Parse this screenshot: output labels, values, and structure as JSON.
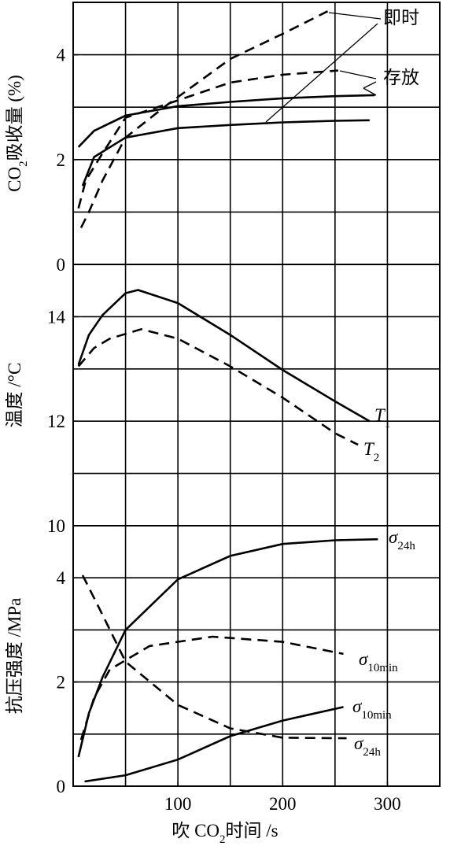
{
  "chart_data": [
    {
      "type": "line",
      "xlim": [
        0,
        350
      ],
      "xgrid": [
        50,
        100,
        150,
        200,
        250,
        300
      ],
      "ylim": [
        0,
        5
      ],
      "yticks": [
        0,
        2,
        4
      ],
      "ygrid": [
        1,
        2,
        3,
        4
      ],
      "ylabel": [
        {
          "text": "CO"
        },
        {
          "text": "2",
          "sub": true
        },
        {
          "text": "吸收量 (%)"
        }
      ],
      "series": [
        {
          "style": "solid",
          "color": "#000",
          "x": [
            5,
            20,
            50,
            100,
            150,
            200,
            250,
            288
          ],
          "values": [
            2.24,
            2.55,
            2.84,
            3.02,
            3.1,
            3.17,
            3.21,
            3.23
          ]
        },
        {
          "style": "solid",
          "color": "#000",
          "x": [
            9,
            20,
            50,
            100,
            150,
            200,
            250,
            283
          ],
          "values": [
            1.5,
            2.05,
            2.42,
            2.6,
            2.66,
            2.71,
            2.74,
            2.75
          ]
        },
        {
          "style": "dashed",
          "color": "#000",
          "x": [
            7.5,
            15,
            28,
            50,
            88,
            150,
            200,
            243
          ],
          "values": [
            0.7,
            1.0,
            1.6,
            2.42,
            3.02,
            3.92,
            4.4,
            4.83
          ]
        },
        {
          "style": "dashed",
          "color": "#000",
          "x": [
            5,
            12,
            28,
            50,
            88,
            150,
            200,
            253
          ],
          "values": [
            1.07,
            1.6,
            2.12,
            2.8,
            3.05,
            3.47,
            3.62,
            3.7
          ]
        }
      ],
      "annotations": [
        [
          {
            "text": "即时"
          }
        ],
        [
          {
            "text": "存放"
          }
        ]
      ]
    },
    {
      "type": "line",
      "xlim": [
        0,
        350
      ],
      "xgrid": [
        50,
        100,
        150,
        200,
        250,
        300
      ],
      "ylim": [
        10,
        15
      ],
      "yticks": [
        10,
        12,
        14
      ],
      "ygrid": [
        11,
        12,
        13,
        14
      ],
      "ylabel": [
        {
          "text": "温度 /°C"
        }
      ],
      "series": [
        {
          "style": "solid",
          "color": "#000",
          "x": [
            5,
            15,
            28,
            50,
            62,
            100,
            150,
            200,
            250,
            283
          ],
          "values": [
            13.08,
            13.65,
            14.03,
            14.45,
            14.51,
            14.26,
            13.65,
            12.98,
            12.38,
            12.0
          ]
        },
        {
          "style": "dashed",
          "color": "#000",
          "x": [
            5,
            20,
            35,
            65,
            100,
            150,
            200,
            250,
            272
          ],
          "values": [
            13.05,
            13.4,
            13.58,
            13.76,
            13.58,
            13.05,
            12.45,
            11.77,
            11.55
          ]
        }
      ],
      "annotations": [
        [
          {
            "text": "T",
            "italic": true
          },
          {
            "text": "1",
            "sub": true
          }
        ],
        [
          {
            "text": "T",
            "italic": true
          },
          {
            "text": "2",
            "sub": true
          }
        ]
      ]
    },
    {
      "type": "line",
      "xlim": [
        0,
        350
      ],
      "xgrid": [
        50,
        100,
        150,
        200,
        250,
        300
      ],
      "ylim": [
        0,
        5
      ],
      "yticks": [
        0,
        2,
        4
      ],
      "ygrid": [
        1,
        2,
        3,
        4
      ],
      "xticks": [
        100,
        200,
        300
      ],
      "ylabel": [
        {
          "text": "抗压强度 /MPa"
        }
      ],
      "xlabel": [
        {
          "text": "吹 CO"
        },
        {
          "text": "2",
          "sub": true
        },
        {
          "text": "时间 /s"
        }
      ],
      "series": [
        {
          "style": "solid",
          "color": "#000",
          "x": [
            5,
            15,
            28,
            50,
            100,
            150,
            200,
            250,
            291
          ],
          "values": [
            0.56,
            1.4,
            2.09,
            3.0,
            3.97,
            4.42,
            4.65,
            4.72,
            4.74
          ]
        },
        {
          "style": "dashed",
          "color": "#000",
          "x": [
            7.5,
            20,
            35,
            73,
            133,
            200,
            258
          ],
          "values": [
            0.89,
            1.7,
            2.24,
            2.69,
            2.87,
            2.77,
            2.54
          ]
        },
        {
          "style": "dashed",
          "color": "#000",
          "x": [
            9,
            28,
            50,
            100,
            150,
            200,
            261
          ],
          "values": [
            4.05,
            3.29,
            2.39,
            1.56,
            1.11,
            0.93,
            0.92
          ]
        },
        {
          "style": "solid",
          "color": "#000",
          "x": [
            11,
            50,
            100,
            150,
            200,
            258
          ],
          "values": [
            0.09,
            0.21,
            0.51,
            0.96,
            1.26,
            1.52
          ]
        }
      ],
      "annotations": [
        [
          {
            "text": "σ",
            "italic": true
          },
          {
            "text": "24h",
            "sub": true
          }
        ],
        [
          {
            "text": "σ",
            "italic": true
          },
          {
            "text": "10min",
            "sub": true
          }
        ],
        [
          {
            "text": "σ",
            "italic": true
          },
          {
            "text": "10min",
            "sub": true
          }
        ],
        [
          {
            "text": "σ",
            "italic": true
          },
          {
            "text": "24h",
            "sub": true
          }
        ]
      ]
    }
  ]
}
